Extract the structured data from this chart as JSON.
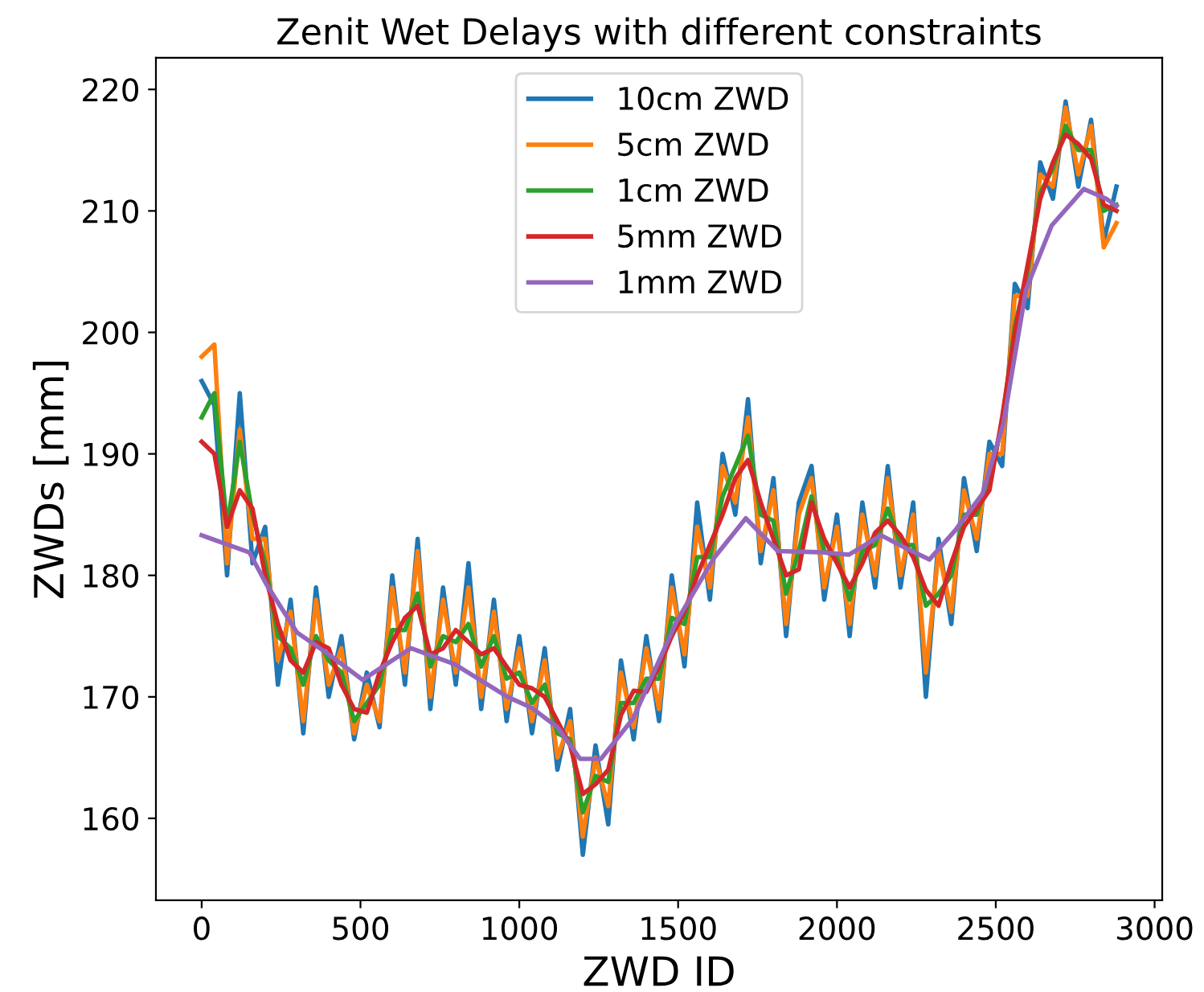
{
  "chart_data": {
    "type": "line",
    "title": "Zenit Wet Delays with different constraints",
    "xlabel": "ZWD ID",
    "ylabel": "ZWDs [mm]",
    "x": [
      0,
      40,
      80,
      120,
      160,
      200,
      240,
      280,
      320,
      360,
      400,
      440,
      480,
      520,
      560,
      600,
      640,
      680,
      720,
      760,
      800,
      840,
      880,
      920,
      960,
      1000,
      1040,
      1080,
      1120,
      1160,
      1200,
      1240,
      1280,
      1320,
      1360,
      1400,
      1440,
      1480,
      1520,
      1560,
      1600,
      1640,
      1680,
      1720,
      1760,
      1800,
      1840,
      1880,
      1920,
      1960,
      2000,
      2040,
      2080,
      2120,
      2160,
      2200,
      2240,
      2280,
      2320,
      2360,
      2400,
      2440,
      2480,
      2520,
      2560,
      2600,
      2640,
      2680,
      2720,
      2760,
      2800,
      2840,
      2880
    ],
    "series": [
      {
        "name": "10cm ZWD",
        "color": "#1f77b4",
        "values": [
          196,
          194,
          180,
          195,
          181,
          184,
          171,
          178,
          167,
          179,
          170,
          175,
          166.5,
          172,
          167.5,
          180,
          171,
          183,
          169,
          179,
          171,
          181,
          169,
          178,
          168,
          175,
          167,
          174,
          164,
          169,
          157,
          166,
          159.5,
          173,
          166.5,
          175,
          168,
          180,
          172.5,
          186,
          178,
          190,
          185,
          194.5,
          181,
          188,
          175,
          186,
          189,
          178,
          185,
          175,
          186,
          179,
          189,
          179,
          186,
          170,
          183,
          176,
          188,
          182,
          191,
          189,
          204,
          202,
          214,
          211,
          219,
          212,
          217.5,
          207.5,
          212
        ]
      },
      {
        "name": "5cm ZWD",
        "color": "#ff7f0e",
        "values": [
          198,
          199,
          181,
          192,
          183,
          183,
          173,
          177,
          168,
          178,
          171,
          174,
          167,
          171,
          168,
          179,
          172,
          182,
          170,
          178,
          172,
          179,
          170,
          177,
          169,
          174,
          168,
          173,
          165,
          168,
          158.5,
          165,
          161,
          172,
          167.5,
          174,
          169,
          179,
          173.5,
          184,
          179,
          189,
          186,
          193,
          182,
          187,
          176,
          185,
          188,
          179,
          184,
          176,
          185,
          180,
          188,
          180,
          185,
          172,
          182,
          177,
          187,
          183,
          190,
          190,
          203,
          203,
          213,
          212,
          218.5,
          213,
          217,
          207,
          209
        ]
      },
      {
        "name": "1cm ZWD",
        "color": "#2ca02c",
        "values": [
          193,
          195,
          184,
          191,
          185,
          181,
          175,
          174,
          171,
          175,
          173,
          172,
          168,
          169.5,
          171,
          175.5,
          175.5,
          178.5,
          172.5,
          175,
          174.5,
          176,
          172.5,
          175,
          171.5,
          172,
          169.5,
          171,
          167,
          166.5,
          160.5,
          163.5,
          163,
          169.5,
          169.5,
          171.5,
          171.5,
          176.5,
          176,
          181.5,
          181.5,
          186.5,
          189,
          191.5,
          185,
          184.5,
          178.5,
          182,
          186.5,
          182,
          181.5,
          178,
          182,
          182.5,
          185.5,
          182.5,
          182.5,
          177.5,
          178.5,
          180,
          185,
          185,
          188,
          192.5,
          200.5,
          205,
          211.5,
          213.5,
          217,
          215,
          215,
          210,
          210.5
        ]
      },
      {
        "name": "5mm ZWD",
        "color": "#d62728",
        "values": [
          191,
          190,
          184,
          187,
          185.5,
          180,
          176,
          173,
          172,
          174.5,
          174,
          171,
          169,
          168.7,
          172,
          174.5,
          176.5,
          177.5,
          173.5,
          174,
          175.5,
          174.5,
          173.5,
          174,
          172.5,
          171,
          170.7,
          170,
          168,
          166,
          162,
          162.8,
          164,
          168.5,
          170.5,
          170.4,
          172.5,
          175,
          177,
          180,
          182.5,
          185,
          188,
          189.5,
          186,
          183,
          180,
          180.5,
          186,
          183,
          181,
          179,
          181,
          183.5,
          184.5,
          183.3,
          181.5,
          178.8,
          177.5,
          181,
          184,
          185.5,
          187,
          193,
          200,
          205.5,
          211,
          214,
          216.3,
          215.5,
          214.3,
          210.5,
          210
        ]
      },
      {
        "name": "1mm ZWD",
        "color": "#9467bd",
        "x": [
          0,
          150,
          203,
          300,
          400,
          507,
          659,
          796,
          963,
          1039,
          1120,
          1191,
          1257,
          1358,
          1495,
          1612,
          1713,
          1814,
          1951,
          2037,
          2139,
          2205,
          2291,
          2372,
          2458,
          2524,
          2595,
          2676,
          2777,
          2848,
          2880
        ],
        "values": [
          183.3,
          181.9,
          179.3,
          175.3,
          173.5,
          171.4,
          174,
          172.7,
          170,
          169.1,
          167.5,
          164.9,
          164.9,
          168.2,
          176.2,
          181.4,
          184.7,
          182,
          181.9,
          181.7,
          183.3,
          182.4,
          181.3,
          183.7,
          186.7,
          192.5,
          203.5,
          208.8,
          211.8,
          211,
          210.4
        ]
      }
    ],
    "xlim": [
      -144,
      3024
    ],
    "ylim": [
      153.25,
      222.6
    ],
    "xticks": [
      0,
      500,
      1000,
      1500,
      2000,
      2500,
      3000
    ],
    "yticks": [
      160,
      170,
      180,
      190,
      200,
      210,
      220
    ],
    "legend": "top",
    "grid": false
  }
}
